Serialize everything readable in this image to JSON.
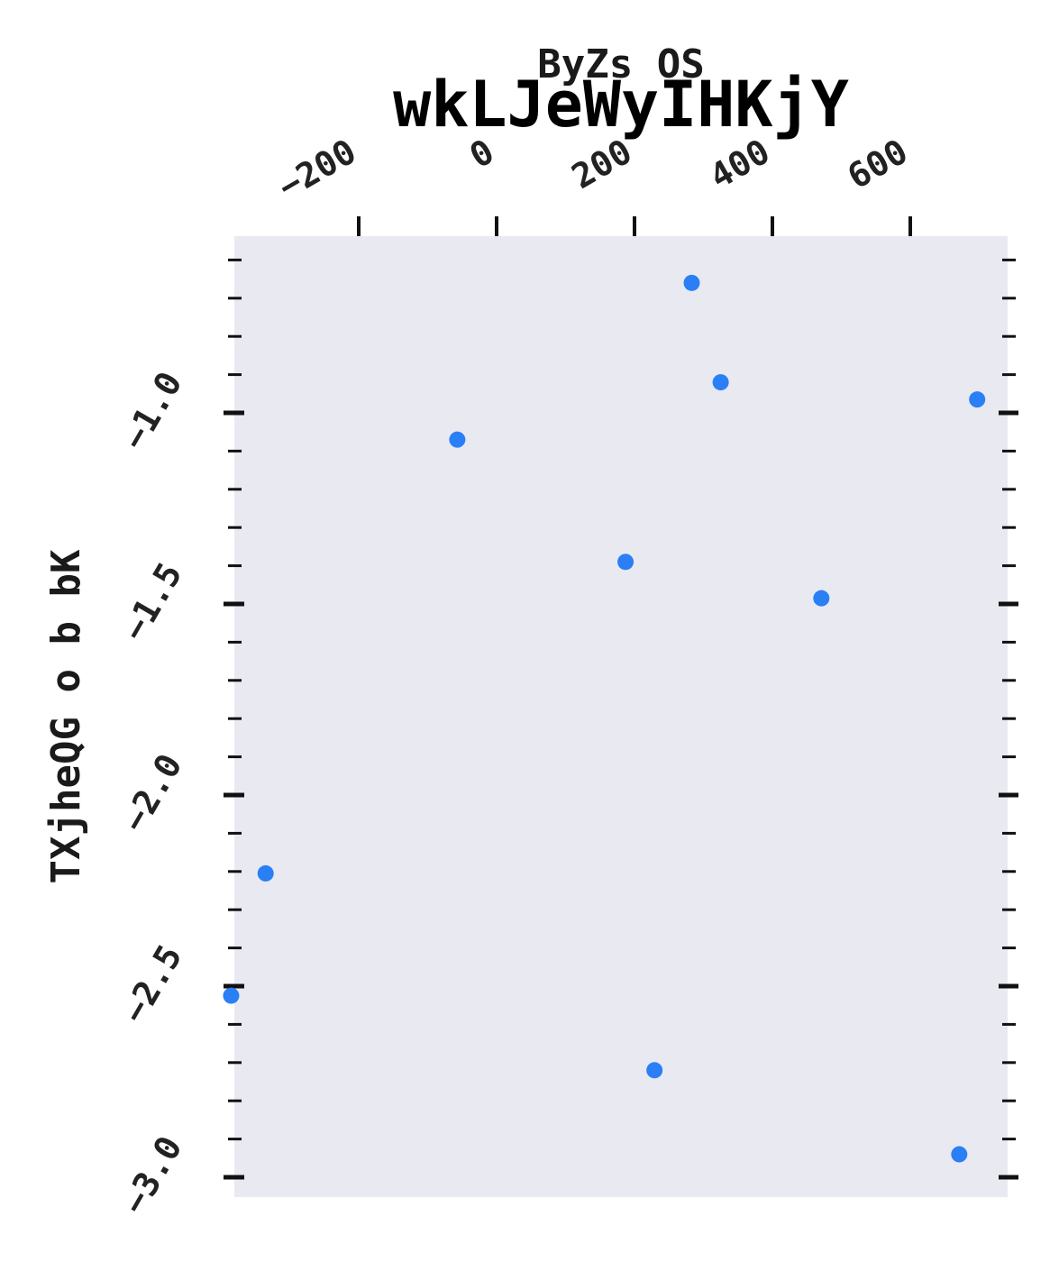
{
  "chart_data": {
    "type": "scatter",
    "title": "wkLJeWyIHKjY",
    "xlabel": "ByZs OS",
    "ylabel": "TXjheQG o b bK",
    "x_axis_position": "top",
    "xlim": [
      -385,
      743
    ],
    "ylim": [
      -3.06,
      -0.545
    ],
    "x_ticks": [
      -200,
      0,
      200,
      400,
      600
    ],
    "y_ticks": [
      -1.0,
      -1.5,
      -2.0,
      -2.5,
      -3.0
    ],
    "y_minor_step": 0.1,
    "grid": false,
    "legend": "none",
    "point_color": "#2a7ff5",
    "plot_background": "#e9e9f2",
    "points": [
      {
        "x": 283,
        "y": -0.66
      },
      {
        "x": 325,
        "y": -0.92
      },
      {
        "x": 697,
        "y": -0.965
      },
      {
        "x": -57,
        "y": -1.07
      },
      {
        "x": 187,
        "y": -1.39
      },
      {
        "x": 471,
        "y": -1.485
      },
      {
        "x": -335,
        "y": -2.205
      },
      {
        "x": -385,
        "y": -2.525
      },
      {
        "x": 229,
        "y": -2.72
      },
      {
        "x": 671,
        "y": -2.94
      }
    ]
  }
}
